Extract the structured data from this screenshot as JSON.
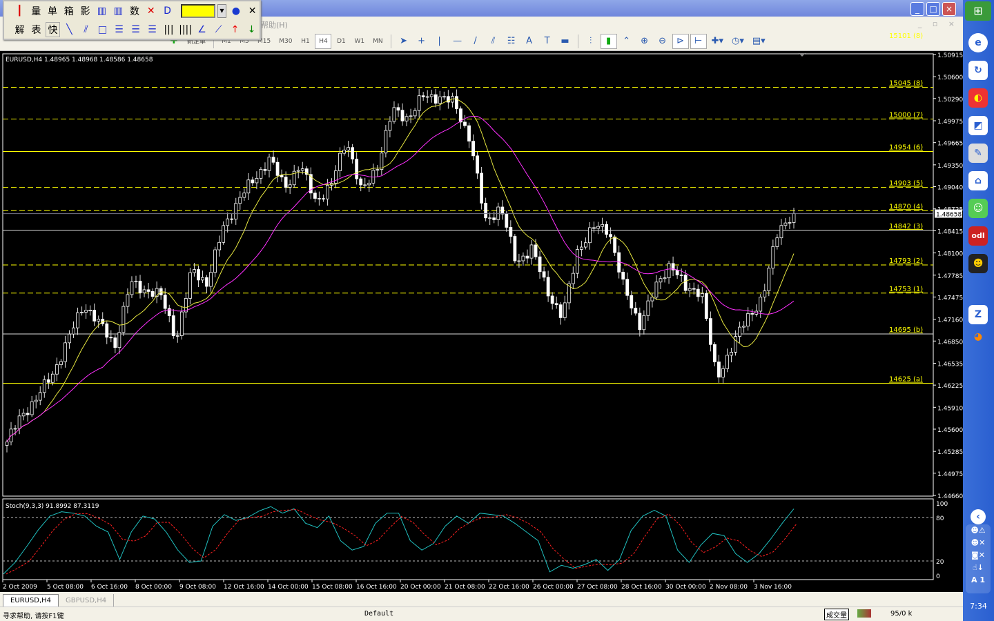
{
  "window": {
    "menu_help": "帮助(H)",
    "min": "_",
    "max": "□",
    "close": "×",
    "mdi": "_ ▫ ×"
  },
  "floating_toolbar": {
    "row1": [
      "量",
      "单",
      "箱",
      "影",
      "数"
    ],
    "row2": [
      "解",
      "表",
      "快"
    ],
    "color": "#ffff00"
  },
  "toolbar": {
    "timeframes": [
      "M1",
      "M5",
      "M15",
      "M30",
      "H1",
      "H4",
      "D1",
      "W1",
      "MN"
    ],
    "active": "H4",
    "new_order": "新定单"
  },
  "chart": {
    "header": "EURUSD,H4  1.48965 1.48968 1.48586 1.48658",
    "symbol": "EURUSD",
    "timeframe": "H4",
    "current_price": "1.48658",
    "price_ticks": [
      "1.50915",
      "1.50600",
      "1.50290",
      "1.49975",
      "1.49665",
      "1.49350",
      "1.49040",
      "1.48725",
      "1.48415",
      "1.48100",
      "1.47785",
      "1.47475",
      "1.47160",
      "1.46850",
      "1.46535",
      "1.46225",
      "1.45910",
      "1.45600",
      "1.45285",
      "1.44975",
      "1.44660"
    ],
    "top_level_label": "15101 (8)",
    "levels": [
      {
        "label": "15045 (8)",
        "price": 1.5045,
        "style": "dashed",
        "color": "#ffff00"
      },
      {
        "label": "15000 (7)",
        "price": 1.5,
        "style": "dashed",
        "color": "#ffff00"
      },
      {
        "label": "14954 (6)",
        "price": 1.4954,
        "style": "solid",
        "color": "#ffff00"
      },
      {
        "label": "14903 (5)",
        "price": 1.4903,
        "style": "dashed",
        "color": "#ffff00"
      },
      {
        "label": "14870 (4)",
        "price": 1.487,
        "style": "dashed",
        "color": "#ffff00"
      },
      {
        "label": "14842 (3)",
        "price": 1.4842,
        "style": "solid",
        "color": "#dddddd"
      },
      {
        "label": "14793 (2)",
        "price": 1.4793,
        "style": "dashed",
        "color": "#ffff00"
      },
      {
        "label": "14753 (1)",
        "price": 1.4753,
        "style": "dashed",
        "color": "#ffff00"
      },
      {
        "label": "14695 (b)",
        "price": 1.4695,
        "style": "solid",
        "color": "#dddddd"
      },
      {
        "label": "14625 (a)",
        "price": 1.4625,
        "style": "solid",
        "color": "#ffff00"
      }
    ],
    "colors": {
      "fast_ma": "#e8e840",
      "slow_ma": "#ff30ff",
      "stoch_main": "#20c0c0",
      "stoch_signal": "#ff2020"
    },
    "time_labels": [
      "2 Oct 2009",
      "5 Oct 08:00",
      "6 Oct 16:00",
      "8 Oct 00:00",
      "9 Oct 08:00",
      "12 Oct 16:00",
      "14 Oct 00:00",
      "15 Oct 08:00",
      "16 Oct 16:00",
      "20 Oct 00:00",
      "21 Oct 08:00",
      "22 Oct 16:00",
      "26 Oct 00:00",
      "27 Oct 08:00",
      "28 Oct 16:00",
      "30 Oct 00:00",
      "2 Nov 08:00",
      "3 Nov 16:00"
    ]
  },
  "chart_data": {
    "type": "candlestick",
    "price_range": [
      1.4466,
      1.50915
    ],
    "close_path": [
      1.4542,
      1.4581,
      1.4606,
      1.464,
      1.4689,
      1.4738,
      1.4709,
      1.4679,
      1.4767,
      1.4758,
      1.4748,
      1.4689,
      1.4787,
      1.4767,
      1.4845,
      1.4885,
      1.4914,
      1.4943,
      1.4904,
      1.4934,
      1.4885,
      1.4904,
      1.4973,
      1.4894,
      1.4934,
      1.5012,
      1.5002,
      1.5032,
      1.5032,
      1.5022,
      1.4973,
      1.4855,
      1.4875,
      1.4797,
      1.4816,
      1.4758,
      1.4718,
      1.4816,
      1.4845,
      1.4845,
      1.4758,
      1.4709,
      1.4758,
      1.4797,
      1.4758,
      1.4758,
      1.463,
      1.4679,
      1.4718,
      1.4748,
      1.4845,
      1.4866
    ],
    "stochastic": {
      "label": "Stoch(9,3,3) 91.8992 87.3119",
      "params": [
        9,
        3,
        3
      ],
      "main": 91.8992,
      "signal": 87.3119,
      "levels": [
        80,
        20
      ],
      "scale_labels": [
        "100",
        "80",
        "20",
        "0"
      ],
      "main_path": [
        2,
        18,
        40,
        63,
        82,
        88,
        86,
        82,
        68,
        60,
        22,
        60,
        82,
        78,
        60,
        35,
        18,
        20,
        68,
        84,
        76,
        80,
        89,
        95,
        86,
        92,
        72,
        66,
        82,
        48,
        35,
        40,
        72,
        86,
        86,
        48,
        35,
        44,
        68,
        82,
        72,
        86,
        84,
        82,
        72,
        60,
        48,
        5,
        14,
        10,
        15,
        22,
        7,
        22,
        62,
        82,
        90,
        82,
        35,
        18,
        42,
        58,
        55,
        30,
        18,
        30,
        50,
        72,
        92
      ]
    }
  },
  "tabs": [
    {
      "label": "EURUSD,H4",
      "active": true
    },
    {
      "label": "GBPUSD,H4",
      "active": false
    }
  ],
  "status": {
    "help": "寻求帮助, 请按F1键",
    "profile": "Default",
    "volume": "成交量",
    "conn": "95/0 k"
  },
  "taskbar": {
    "clock": "7:34"
  }
}
